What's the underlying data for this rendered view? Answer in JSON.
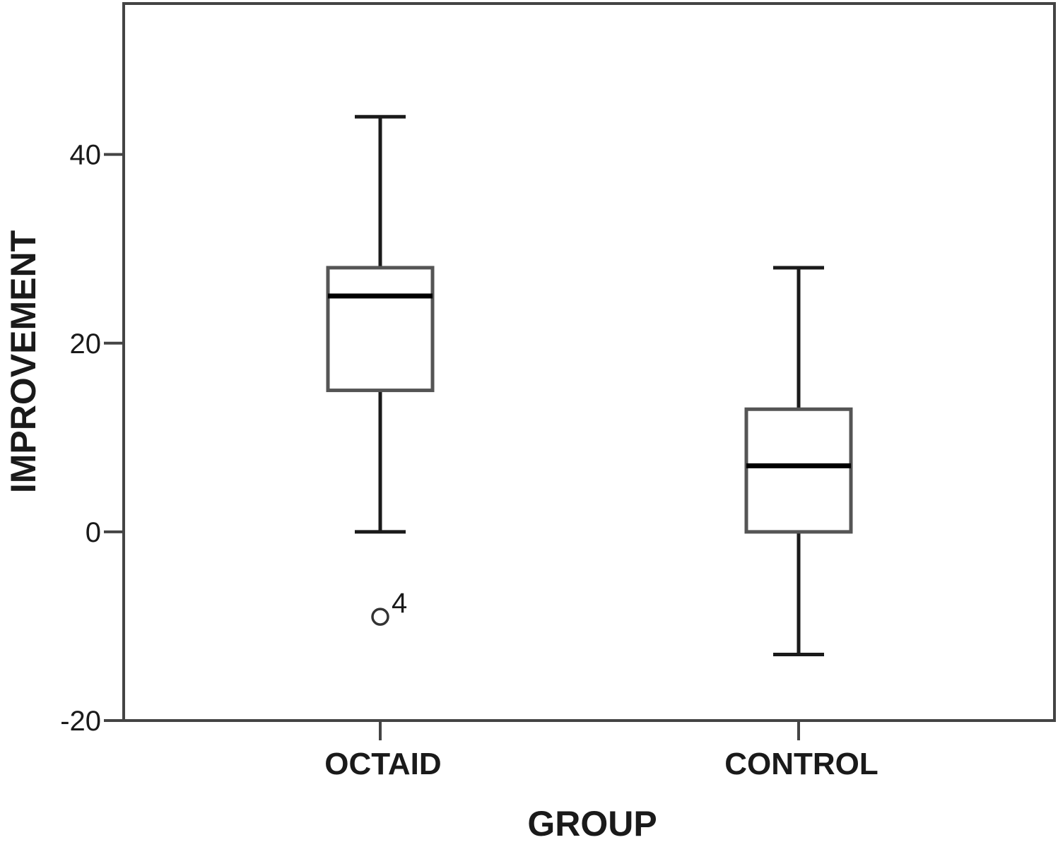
{
  "chart_data": {
    "type": "boxplot",
    "title": "",
    "xlabel": "GROUP",
    "ylabel": "IMPROVEMENT",
    "ylim": [
      -20,
      56
    ],
    "yticks": [
      -20,
      0,
      20,
      40
    ],
    "ytick_labels": [
      "-20",
      "0",
      "20",
      "40"
    ],
    "grid": false,
    "legend": "none",
    "categories": [
      "OCTAID",
      "CONTROL"
    ],
    "boxes": [
      {
        "category": "OCTAID",
        "whisker_low": 0,
        "q1": 15,
        "median": 25,
        "q3": 28,
        "whisker_high": 44,
        "outliers": [
          {
            "value": -9,
            "label": "4"
          }
        ]
      },
      {
        "category": "CONTROL",
        "whisker_low": -13,
        "q1": 0,
        "median": 7,
        "q3": 13,
        "whisker_high": 28,
        "outliers": []
      }
    ],
    "colors": {
      "line": "#1a1a1a",
      "box_edge": "#555555",
      "box_fill": "#ffffff"
    }
  }
}
